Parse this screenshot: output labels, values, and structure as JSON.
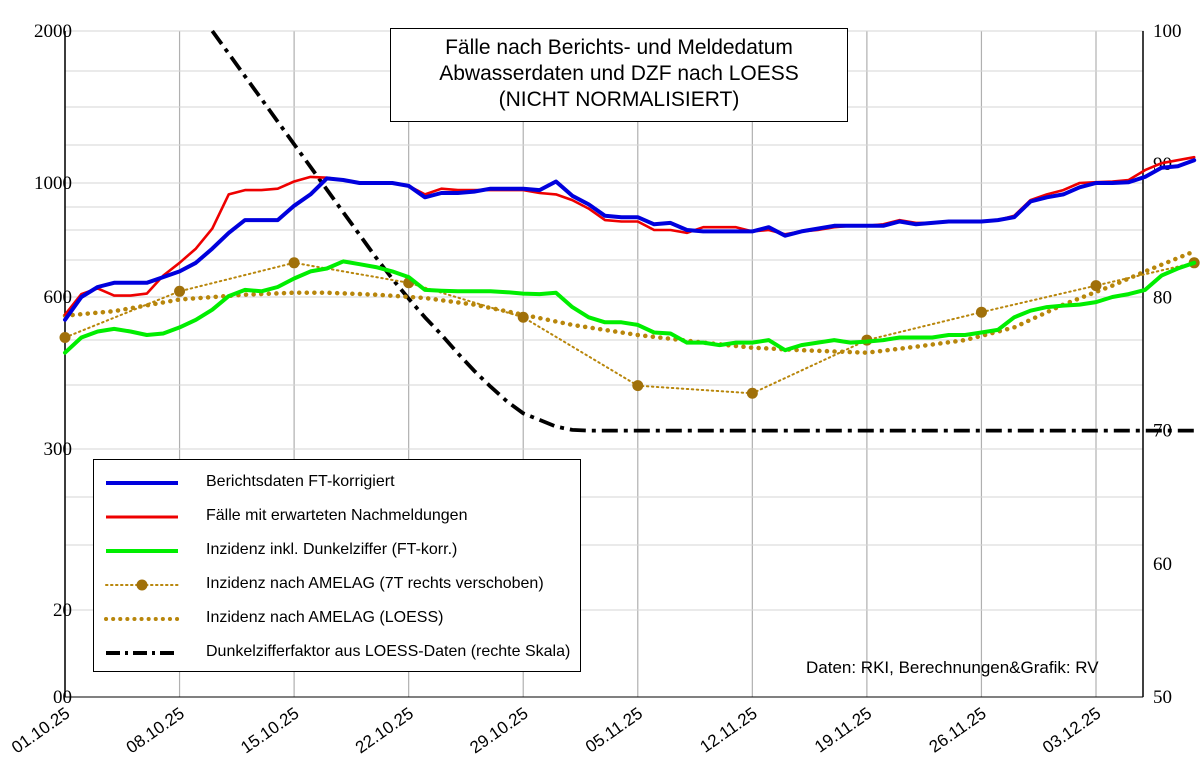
{
  "chart_data": {
    "type": "line",
    "title_lines": [
      "Fälle nach Berichts- und Meldedatum",
      "Abwasserdaten und DZF nach LOESS",
      "(NICHT NORMALISIERT)"
    ],
    "x_tick_labels": [
      "01.10.25",
      "08.10.25",
      "15.10.25",
      "22.10.25",
      "29.10.25",
      "05.11.25",
      "12.11.25",
      "19.11.25",
      "26.11.25",
      "03.12.25"
    ],
    "x_day_range": [
      0,
      69
    ],
    "left_axis": {
      "ticks": [
        {
          "label": "2000",
          "value": 2000
        },
        {
          "label": "1000",
          "value": 1000
        },
        {
          "label": "600",
          "value": 600
        },
        {
          "label": "300",
          "value": 300
        },
        {
          "label": "20",
          "value": 20
        },
        {
          "label": "00",
          "value": 0
        }
      ]
    },
    "right_axis": {
      "ylim": [
        50,
        100
      ],
      "ticks": [
        "100",
        "90",
        "80",
        "70",
        "60",
        "50"
      ]
    },
    "series": [
      {
        "name": "Berichtsdaten FT-korrigiert",
        "color": "#0000dd",
        "style": "solid-thick",
        "axis": "left",
        "x": [
          0,
          1,
          2,
          3,
          4,
          5,
          6,
          7,
          8,
          9,
          10,
          11,
          12,
          13,
          14,
          15,
          16,
          17,
          18,
          19,
          20,
          21,
          22,
          23,
          24,
          25,
          26,
          27,
          28,
          29,
          30,
          31,
          32,
          33,
          34,
          35,
          36,
          37,
          38,
          39,
          40,
          41,
          42,
          43,
          44,
          45,
          46,
          47,
          48,
          49,
          50,
          51,
          52,
          53,
          54,
          55,
          56,
          57,
          58,
          59,
          60,
          61,
          62,
          63,
          64,
          65,
          66,
          67,
          68,
          69
        ],
        "y": [
          555,
          600,
          635,
          650,
          650,
          650,
          670,
          690,
          720,
          770,
          825,
          870,
          870,
          870,
          920,
          960,
          1030,
          1020,
          1000,
          1000,
          1000,
          990,
          950,
          965,
          965,
          970,
          980,
          980,
          980,
          975,
          1010,
          955,
          925,
          885,
          880,
          880,
          855,
          860,
          835,
          830,
          830,
          830,
          830,
          845,
          815,
          830,
          840,
          850,
          850,
          850,
          850,
          865,
          855,
          860,
          865,
          865,
          865,
          870,
          880,
          935,
          950,
          960,
          985,
          1000,
          1000,
          1005,
          1040,
          1100,
          1110,
          1150
        ]
      },
      {
        "name": "Fälle mit erwarteten Nachmeldungen",
        "color": "#ee0000",
        "style": "solid",
        "axis": "left",
        "x": [
          0,
          1,
          2,
          3,
          4,
          5,
          6,
          7,
          8,
          9,
          10,
          11,
          12,
          13,
          14,
          15,
          16,
          17,
          18,
          19,
          20,
          21,
          22,
          23,
          24,
          25,
          26,
          27,
          28,
          29,
          30,
          31,
          32,
          33,
          34,
          35,
          36,
          37,
          38,
          39,
          40,
          41,
          42,
          43,
          44,
          45,
          46,
          47,
          48,
          49,
          50,
          51,
          52,
          53,
          54,
          55,
          56,
          57,
          58,
          59,
          60,
          61,
          62,
          63,
          64,
          65,
          66,
          67,
          68,
          69
        ],
        "y": [
          565,
          610,
          630,
          605,
          605,
          612,
          675,
          720,
          770,
          840,
          960,
          975,
          975,
          980,
          1010,
          1040,
          1035,
          1020,
          1000,
          1000,
          1000,
          990,
          960,
          980,
          975,
          975,
          975,
          975,
          975,
          965,
          960,
          940,
          910,
          870,
          865,
          865,
          835,
          835,
          825,
          845,
          845,
          845,
          830,
          835,
          820,
          830,
          835,
          845,
          850,
          850,
          855,
          870,
          860,
          860,
          865,
          865,
          865,
          870,
          885,
          940,
          960,
          975,
          1000,
          1005,
          1010,
          1020,
          1085,
          1130,
          1150,
          1170
        ]
      },
      {
        "name": "Inzidenz inkl. Dunkelziffer (FT-korr.)",
        "color": "#00ee00",
        "style": "solid-thick",
        "axis": "left",
        "x": [
          0,
          1,
          2,
          3,
          4,
          5,
          6,
          7,
          8,
          9,
          10,
          11,
          12,
          13,
          14,
          15,
          16,
          17,
          18,
          19,
          20,
          21,
          22,
          23,
          24,
          25,
          26,
          27,
          28,
          29,
          30,
          31,
          32,
          33,
          34,
          35,
          36,
          37,
          38,
          39,
          40,
          41,
          42,
          43,
          44,
          45,
          46,
          47,
          48,
          49,
          50,
          51,
          52,
          53,
          54,
          55,
          56,
          57,
          58,
          59,
          60,
          61,
          62,
          63,
          64,
          65,
          66,
          67,
          68,
          69
        ],
        "y": [
          490,
          520,
          532,
          537,
          532,
          525,
          528,
          540,
          555,
          575,
          603,
          625,
          620,
          635,
          665,
          690,
          700,
          725,
          715,
          705,
          690,
          670,
          625,
          622,
          620,
          620,
          620,
          617,
          612,
          610,
          615,
          580,
          560,
          550,
          550,
          545,
          530,
          528,
          510,
          510,
          505,
          510,
          510,
          515,
          495,
          505,
          510,
          515,
          510,
          512,
          515,
          520,
          520,
          520,
          525,
          525,
          530,
          535,
          560,
          573,
          580,
          583,
          585,
          590,
          600,
          610,
          625,
          675,
          700,
          720
        ]
      },
      {
        "name": "Inzidenz nach AMELAG (7T rechts verschoben)",
        "color": "#b8860b",
        "style": "dotted-markers",
        "axis": "left",
        "x": [
          0,
          7,
          14,
          21,
          28,
          35,
          42,
          49,
          56,
          63,
          69
        ],
        "y": [
          520,
          620,
          720,
          650,
          560,
          425,
          410,
          515,
          570,
          640,
          720
        ]
      },
      {
        "name": "Inzidenz nach AMELAG (LOESS)",
        "color": "#b8860b",
        "style": "dotted-thick",
        "axis": "left",
        "x": [
          0,
          3,
          7,
          11,
          14,
          16,
          19,
          22,
          25,
          28,
          31,
          35,
          39,
          42,
          45,
          49,
          52,
          55,
          58,
          61,
          64,
          66,
          69
        ],
        "y": [
          563,
          572,
          595,
          608,
          615,
          615,
          608,
          598,
          585,
          565,
          545,
          525,
          510,
          500,
          495,
          490,
          502,
          515,
          540,
          585,
          640,
          690,
          760
        ]
      },
      {
        "name": "Dunkelzifferfaktor aus LOESS-Daten (rechte Skala)",
        "color": "#000000",
        "style": "dashdot",
        "axis": "right",
        "x": [
          9,
          10,
          11,
          12,
          13,
          14,
          15,
          16,
          17,
          18,
          19,
          20,
          21,
          22,
          23,
          24,
          25,
          26,
          27,
          28,
          29,
          30,
          31,
          32,
          34,
          40,
          50,
          60,
          69
        ],
        "y": [
          100,
          98.3,
          96.6,
          94.9,
          93.2,
          91.5,
          89.8,
          88.1,
          86.4,
          84.7,
          83.0,
          81.4,
          79.9,
          78.5,
          77.2,
          75.8,
          74.5,
          73.3,
          72.2,
          71.3,
          70.8,
          70.3,
          70.05,
          70,
          70,
          70,
          70,
          70,
          70
        ]
      }
    ],
    "legend_placement": "bottom-left",
    "grid": true,
    "source": "Daten: RKI, Berechnungen&Grafik: RV"
  }
}
